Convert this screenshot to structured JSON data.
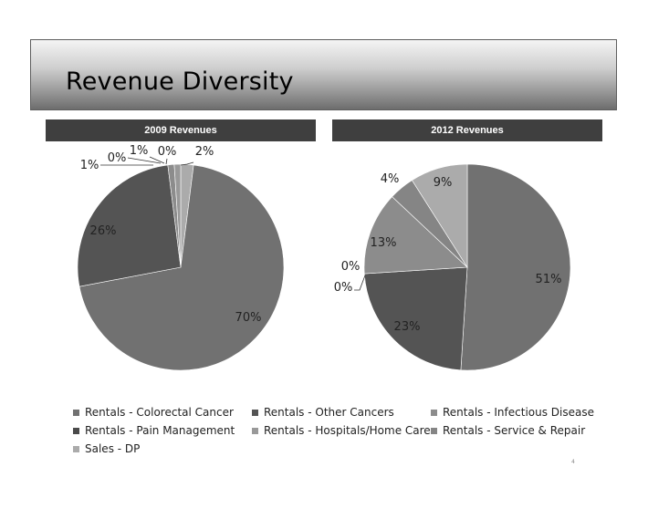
{
  "page": {
    "title": "Revenue Diversity",
    "footnote_mark": "4"
  },
  "colors": {
    "Rentals - Colorectal Cancer": "#717171",
    "Rentals - Other Cancers": "#545454",
    "Rentals - Infectious Disease": "#8c8c8c",
    "Rentals - Pain Management": "#4a4a4a",
    "Rentals - Hospitals/Home Care": "#999999",
    "Rentals - Service & Repair": "#858585",
    "Sales - DP": "#ababab"
  },
  "legend": [
    "Rentals - Colorectal Cancer",
    "Rentals - Other Cancers",
    "Rentals - Infectious Disease",
    "Rentals - Pain Management",
    "Rentals - Hospitals/Home Care",
    "Rentals - Service & Repair",
    "Sales - DP"
  ],
  "chart_data": [
    {
      "type": "pie",
      "title": "2009 Revenues",
      "categories": [
        "Rentals - Colorectal Cancer",
        "Rentals - Other Cancers",
        "Rentals - Infectious Disease",
        "Rentals - Pain Management",
        "Rentals - Hospitals/Home Care",
        "Rentals - Service & Repair",
        "Sales - DP"
      ],
      "slices": [
        {
          "category": "Sales - DP",
          "value": 2,
          "label": "2%"
        },
        {
          "category": "Rentals - Colorectal Cancer",
          "value": 70,
          "label": "70%"
        },
        {
          "category": "Rentals - Other Cancers",
          "value": 26,
          "label": "26%"
        },
        {
          "category": "Rentals - Infectious Disease",
          "value": 1,
          "label": "1%"
        },
        {
          "category": "Rentals - Pain Management",
          "value": 0,
          "label": "0%"
        },
        {
          "category": "Rentals - Hospitals/Home Care",
          "value": 1,
          "label": "1%"
        },
        {
          "category": "Rentals - Service & Repair",
          "value": 0,
          "label": "0%"
        }
      ]
    },
    {
      "type": "pie",
      "title": "2012 Revenues",
      "categories": [
        "Rentals - Colorectal Cancer",
        "Rentals - Other Cancers",
        "Rentals - Infectious Disease",
        "Rentals - Pain Management",
        "Rentals - Hospitals/Home Care",
        "Rentals - Service & Repair",
        "Sales - DP"
      ],
      "slices": [
        {
          "category": "Rentals - Colorectal Cancer",
          "value": 51,
          "label": "51%"
        },
        {
          "category": "Rentals - Other Cancers",
          "value": 23,
          "label": "23%"
        },
        {
          "category": "Rentals - Pain Management",
          "value": 0,
          "label": "0%"
        },
        {
          "category": "Rentals - Hospitals/Home Care",
          "value": 0,
          "label": "0%"
        },
        {
          "category": "Rentals - Infectious Disease",
          "value": 13,
          "label": "13%"
        },
        {
          "category": "Rentals - Service & Repair",
          "value": 4,
          "label": "4%"
        },
        {
          "category": "Sales - DP",
          "value": 9,
          "label": "9%"
        }
      ]
    }
  ]
}
